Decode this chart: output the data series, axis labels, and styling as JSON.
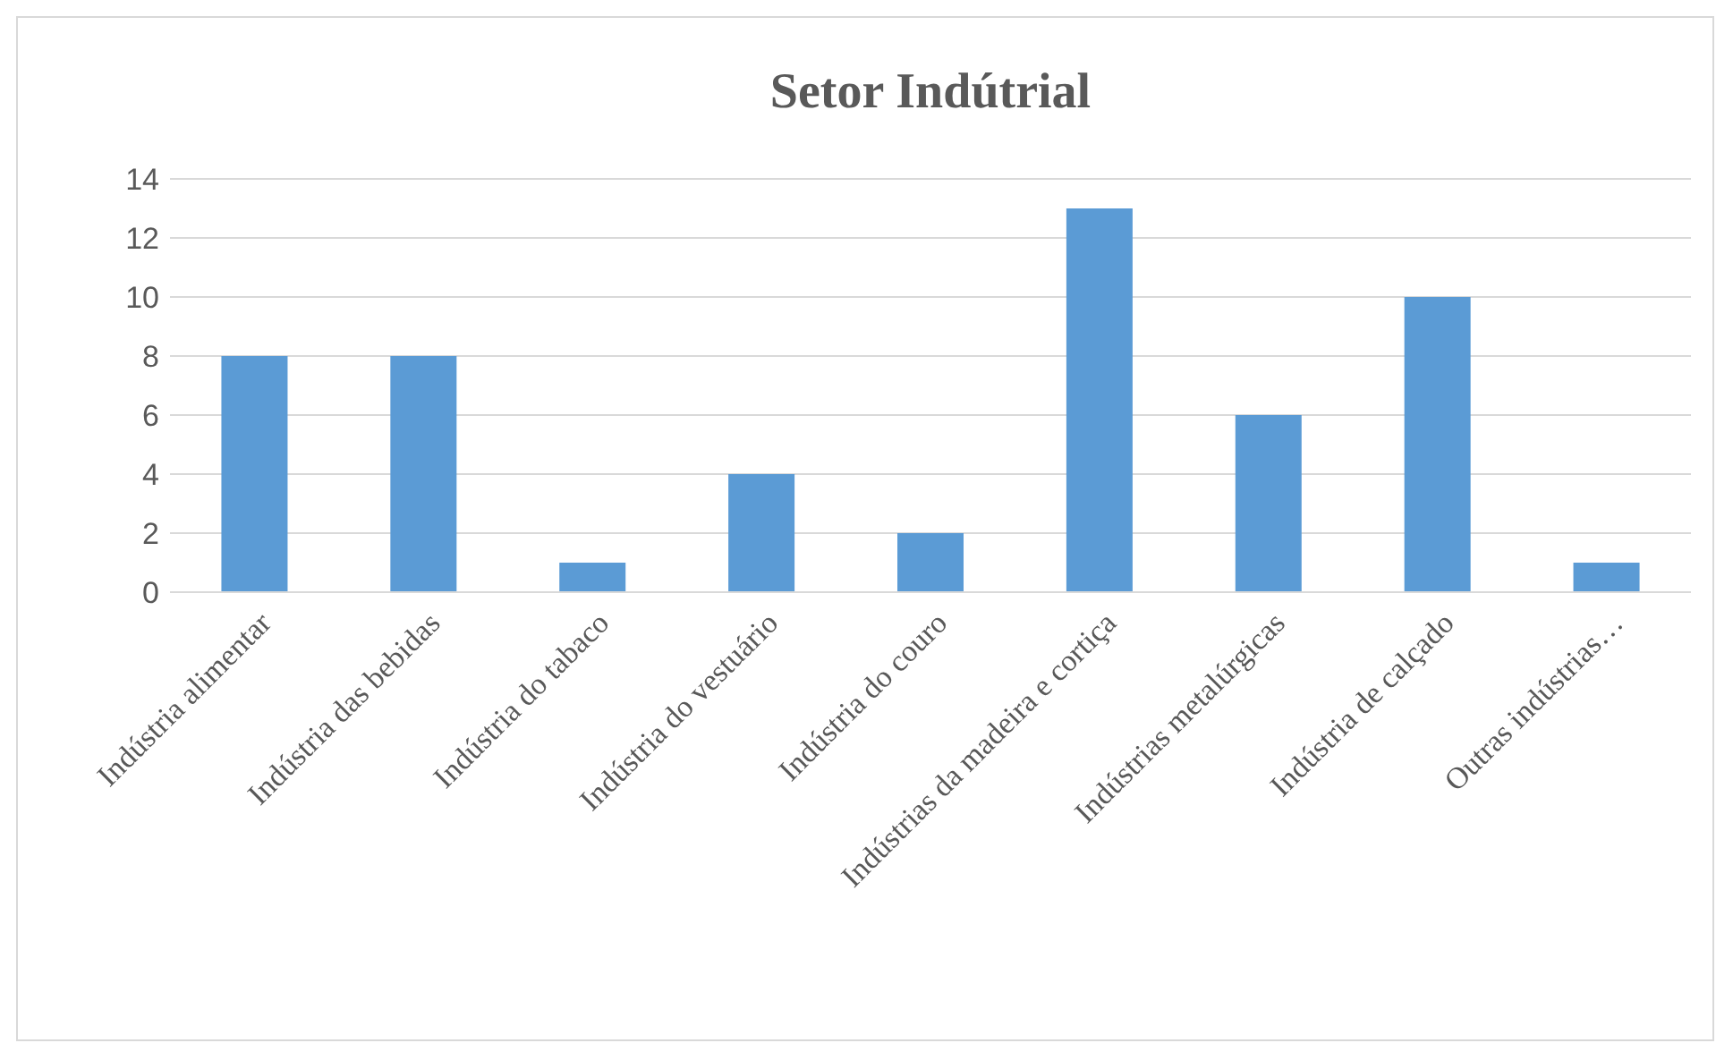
{
  "chart_data": {
    "type": "bar",
    "title": "Setor Indútrial",
    "categories": [
      "Indústria alimentar",
      "Indústria das bebidas",
      "Indústria do tabaco",
      "Indústria do vestuário",
      "Indústria do couro",
      "Indústrias da madeira e cortiça",
      "Indústrias metalúrgicas",
      "Indústria de calçado",
      "Outras indústrias…"
    ],
    "values": [
      8,
      8,
      1,
      4,
      2,
      13,
      6,
      10,
      1
    ],
    "color": "#5b9bd5",
    "ylim": [
      0,
      14
    ],
    "yticks": [
      0,
      2,
      4,
      6,
      8,
      10,
      12,
      14
    ],
    "grid": "y"
  }
}
